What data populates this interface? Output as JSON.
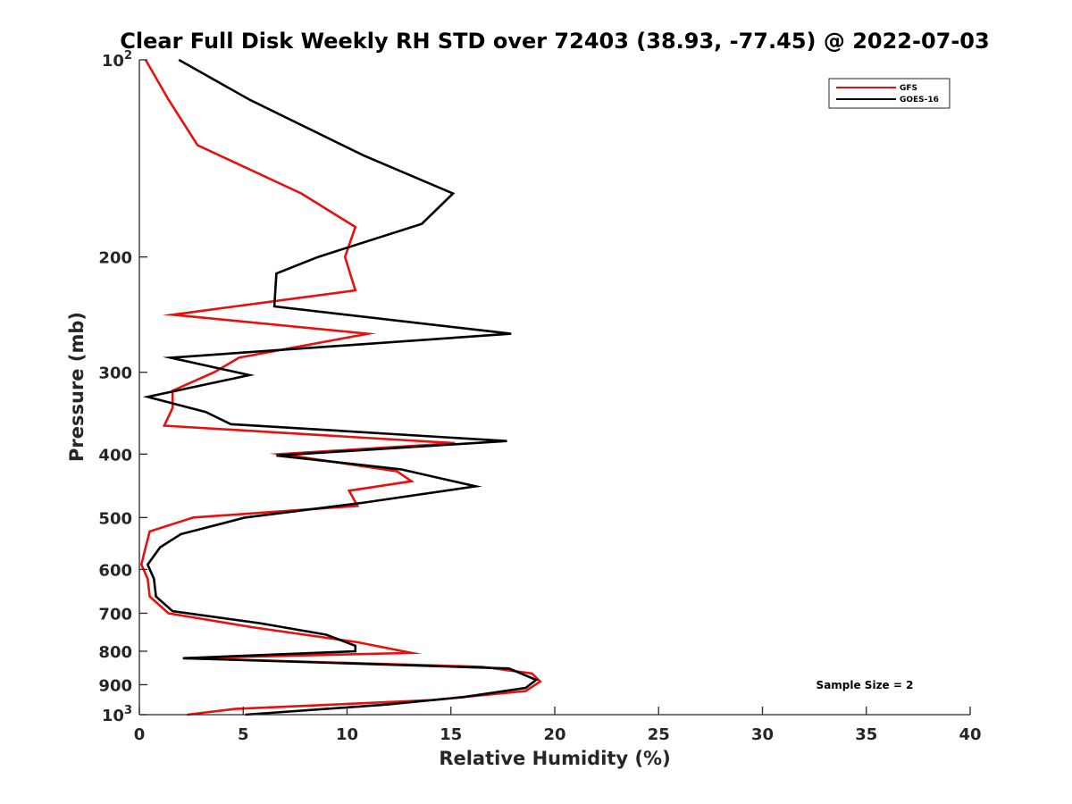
{
  "chart_data": {
    "type": "line",
    "title": "Clear Full Disk Weekly RH STD over 72403 (38.93, -77.45) @ 2022-07-03",
    "xlabel": "Relative Humidity (%)",
    "ylabel": "Pressure (mb)",
    "xlim": [
      0,
      40
    ],
    "ylim": [
      100,
      1000
    ],
    "y_scale": "log",
    "y_reversed": true,
    "x_ticks": [
      0,
      5,
      10,
      15,
      20,
      25,
      30,
      35,
      40
    ],
    "x_tick_labels": [
      "0",
      "5",
      "10",
      "15",
      "20",
      "25",
      "30",
      "35",
      "40"
    ],
    "y_ticks": [
      100,
      200,
      300,
      400,
      500,
      600,
      700,
      800,
      900,
      1000
    ],
    "y_tick_labels": [
      {
        "base": "10",
        "exp": "2"
      },
      {
        "base": "200",
        "exp": ""
      },
      {
        "base": "300",
        "exp": ""
      },
      {
        "base": "400",
        "exp": ""
      },
      {
        "base": "500",
        "exp": ""
      },
      {
        "base": "600",
        "exp": ""
      },
      {
        "base": "700",
        "exp": ""
      },
      {
        "base": "800",
        "exp": ""
      },
      {
        "base": "900",
        "exp": ""
      },
      {
        "base": "10",
        "exp": "3"
      }
    ],
    "grid": false,
    "legend_position": "top-right",
    "annotation": "Sample Size = 2",
    "series": [
      {
        "name": "GFS",
        "color": "#e8100e",
        "points": [
          [
            0.3,
            100
          ],
          [
            1.4,
            115
          ],
          [
            2.8,
            135
          ],
          [
            7.8,
            160
          ],
          [
            10.4,
            180
          ],
          [
            9.9,
            200
          ],
          [
            10.4,
            225
          ],
          [
            1.6,
            245
          ],
          [
            11.0,
            262
          ],
          [
            4.8,
            285
          ],
          [
            3.6,
            300
          ],
          [
            1.6,
            320
          ],
          [
            1.6,
            340
          ],
          [
            1.2,
            362
          ],
          [
            15.2,
            385
          ],
          [
            6.8,
            400
          ],
          [
            12.4,
            425
          ],
          [
            13.1,
            440
          ],
          [
            10.1,
            455
          ],
          [
            10.5,
            480
          ],
          [
            2.6,
            500
          ],
          [
            0.5,
            525
          ],
          [
            0.3,
            555
          ],
          [
            0.1,
            590
          ],
          [
            0.4,
            620
          ],
          [
            0.5,
            660
          ],
          [
            1.4,
            700
          ],
          [
            5.4,
            735
          ],
          [
            10.5,
            775
          ],
          [
            13.1,
            805
          ],
          [
            2.1,
            820
          ],
          [
            16.5,
            845
          ],
          [
            18.9,
            865
          ],
          [
            19.3,
            890
          ],
          [
            18.6,
            920
          ],
          [
            14.1,
            950
          ],
          [
            4.6,
            980
          ],
          [
            2.3,
            1000
          ]
        ]
      },
      {
        "name": "GOES-16",
        "color": "#000000",
        "points": [
          [
            1.9,
            100
          ],
          [
            5.3,
            115
          ],
          [
            10.8,
            140
          ],
          [
            15.1,
            160
          ],
          [
            13.6,
            178
          ],
          [
            8.6,
            200
          ],
          [
            6.6,
            212
          ],
          [
            6.5,
            238
          ],
          [
            17.9,
            262
          ],
          [
            1.5,
            285
          ],
          [
            5.3,
            303
          ],
          [
            0.4,
            327
          ],
          [
            3.2,
            345
          ],
          [
            4.4,
            360
          ],
          [
            17.7,
            382
          ],
          [
            6.6,
            402
          ],
          [
            12.6,
            422
          ],
          [
            16.2,
            448
          ],
          [
            10.7,
            475
          ],
          [
            5.1,
            500
          ],
          [
            2.0,
            530
          ],
          [
            1.0,
            555
          ],
          [
            0.4,
            590
          ],
          [
            0.7,
            620
          ],
          [
            0.8,
            660
          ],
          [
            1.6,
            695
          ],
          [
            5.8,
            725
          ],
          [
            9.0,
            755
          ],
          [
            10.4,
            785
          ],
          [
            10.4,
            800
          ],
          [
            2.1,
            820
          ],
          [
            17.8,
            850
          ],
          [
            19.1,
            885
          ],
          [
            18.6,
            910
          ],
          [
            15.6,
            940
          ],
          [
            11.9,
            965
          ],
          [
            5.1,
            1000
          ]
        ]
      }
    ]
  }
}
